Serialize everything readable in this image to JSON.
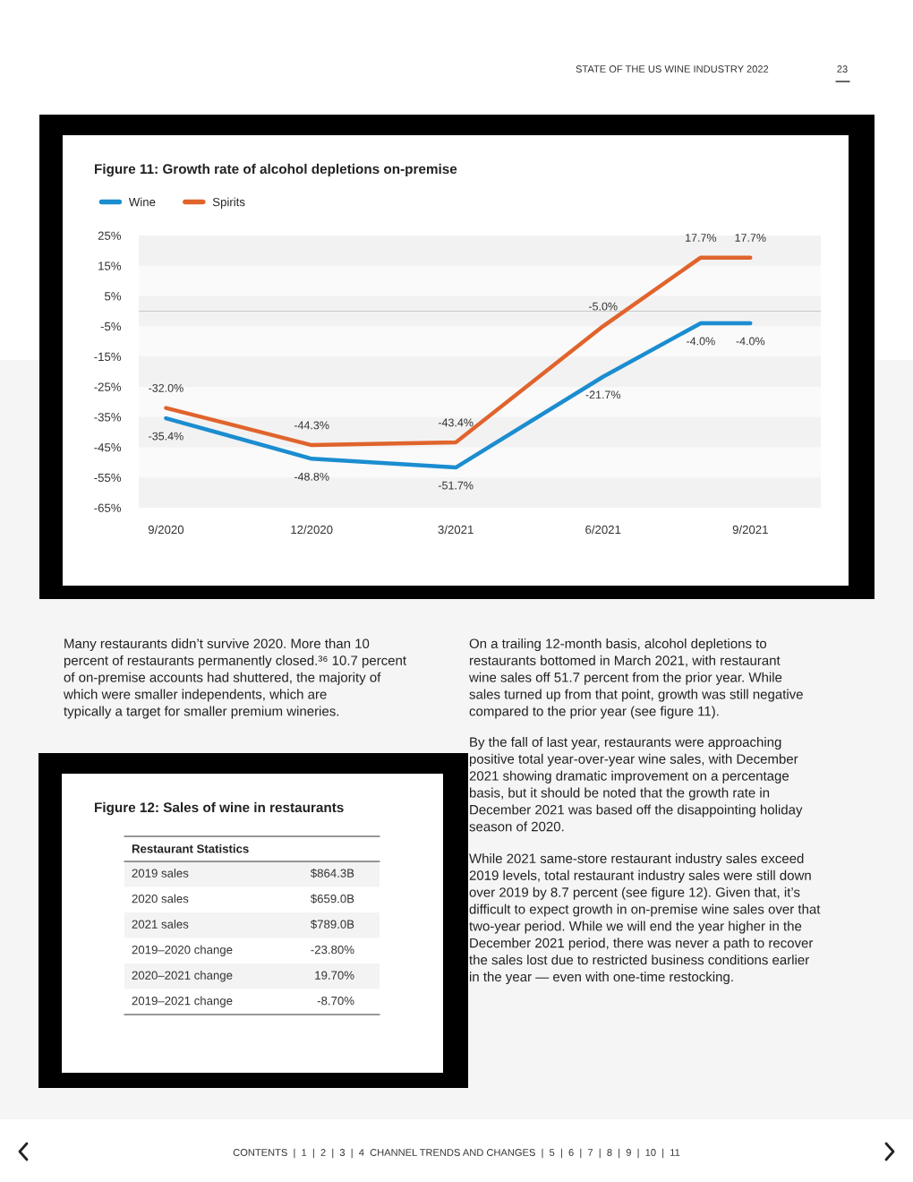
{
  "chart_data": [
    {
      "type": "other",
      "title": "STATE OF THE US WINE INDUSTRY 2022",
      "annotations": [
        "23",
        "Many restaurants didn’t survive 2020. More than 10\npercent of restaurants permanently closed.³⁶ 10.7 percent\nof on-premise accounts had shuttered, the majority of\nwhich were smaller independents, which are\ntypically a target for smaller premium wineries.",
        "On a trailing 12-month basis, alcohol depletions to\nrestaurants bottomed in March 2021, with restaurant\nwine sales off 51.7 percent from the prior year. While\nsales turned up from that point, growth was still negative\ncompared to the prior year (see figure 11).",
        "By the fall of last year, restaurants were approaching\npositive total year-over-year wine sales, with December\n2021 showing dramatic improvement on a percentage\nbasis, but it should be noted that the growth rate in\nDecember 2021 was based off the disappointing holiday\nseason of 2020.",
        "While 2021 same-store restaurant industry sales exceed\n2019 levels, total restaurant industry sales were still down\nover 2019 by 8.7 percent (see figure 12). Given that, it’s\ndifficult to expect growth in on-premise wine sales over that\ntwo-year period. While we will end the year higher in the\nDecember 2021 period, there was never a path to recover\nthe sales lost due to restricted business conditions earlier\nin the year — even with one-time restocking.",
        "CONTENTS  |  1  |  2  |  3  |  4  CHANNEL TRENDS AND CHANGES  |  5  |  6  |  7  |  8  |  9  |  10  |  11"
      ]
    },
    {
      "type": "line",
      "title": "Figure 11: Growth rate of alcohol depletions on-premise",
      "x": [
        "2020-09",
        "2020-12",
        "2021-03",
        "2021-06",
        "2021-08",
        "2021-09"
      ],
      "series": [
        {
          "name": "Wine",
          "color": "#1b8dd0",
          "values": [
            -35.4,
            -48.8,
            -51.7,
            -21.7,
            -4.0,
            -4.0
          ],
          "value_labels": [
            "-35.4%",
            "-48.8%",
            "-51.7%",
            "-21.7%",
            "-4.0%",
            "-4.0%"
          ]
        },
        {
          "name": "Spirits",
          "color": "#e0642c",
          "values": [
            -32.0,
            -44.3,
            -43.4,
            -5.0,
            17.7,
            17.7
          ],
          "value_labels": [
            "-32.0%",
            "-44.3%",
            "-43.4%",
            "-5.0%",
            "17.7%",
            "17.7%"
          ]
        }
      ],
      "xlim": [
        "2020-08-15",
        "2021-10-15"
      ],
      "xticks": [
        {
          "value": "2020-09",
          "label": "9/2020"
        },
        {
          "value": "2020-12",
          "label": "12/2020"
        },
        {
          "value": "2021-03",
          "label": "3/2021"
        },
        {
          "value": "2021-06",
          "label": "6/2021"
        },
        {
          "value": "2021-09",
          "label": "9/2021"
        }
      ],
      "ylim": [
        -65,
        25
      ],
      "yticks": [
        {
          "value": 25,
          "label": "25%"
        },
        {
          "value": 15,
          "label": "15%"
        },
        {
          "value": 5,
          "label": "5%"
        },
        {
          "value": -5,
          "label": "-5%"
        },
        {
          "value": -15,
          "label": "-15%"
        },
        {
          "value": -25,
          "label": "-25%"
        },
        {
          "value": -35,
          "label": "-35%"
        },
        {
          "value": -45,
          "label": "-45%"
        },
        {
          "value": -55,
          "label": "-55%"
        },
        {
          "value": -65,
          "label": "-65%"
        }
      ],
      "bands": [
        {
          "axis": "y",
          "from": 15,
          "to": 25,
          "color": "#f2f2f2"
        },
        {
          "axis": "y",
          "from": -5,
          "to": 5,
          "color": "#f2f2f2"
        },
        {
          "axis": "y",
          "from": -25,
          "to": -15,
          "color": "#f2f2f2"
        },
        {
          "axis": "y",
          "from": -45,
          "to": -35,
          "color": "#f2f2f2"
        },
        {
          "axis": "y",
          "from": -65,
          "to": -55,
          "color": "#f2f2f2"
        }
      ],
      "ref_lines": [
        {
          "axis": "y",
          "value": 0,
          "color": "#c8c8c8"
        }
      ],
      "legend": "top left",
      "marker": "none",
      "line_style": "solid"
    },
    {
      "type": "other",
      "title": "Figure 12: Sales of wine in restaurants",
      "annotations": [
        "Restaurant Statistics",
        "2019 sales",
        "$864.3B",
        "2020 sales",
        "$659.0B",
        "2021 sales",
        "$789.0B",
        "2019–2020 change",
        "-23.80%",
        "2020–2021 change",
        "19.70%",
        "2019–2021 change",
        "-8.70%"
      ]
    }
  ]
}
